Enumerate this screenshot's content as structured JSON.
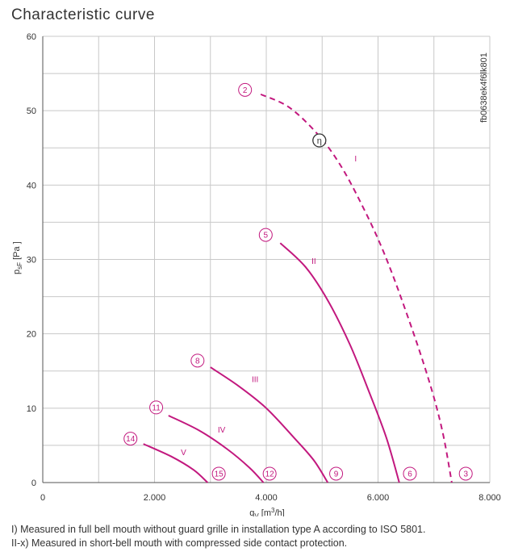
{
  "chart_data": {
    "type": "line",
    "title": "Characteristic curve",
    "xlabel": "qv [m³/h]",
    "ylabel": "psF [Pa ]",
    "xlim": [
      0,
      8000
    ],
    "ylim": [
      0,
      60
    ],
    "xticks": [
      0,
      2000,
      4000,
      6000,
      8000
    ],
    "xtick_labels": [
      "0",
      "2.000",
      "4.000",
      "6.000",
      "8.000"
    ],
    "yticks": [
      0,
      10,
      20,
      30,
      40,
      50,
      60
    ],
    "ytick_labels": [
      "0",
      "10",
      "20",
      "30",
      "40",
      "50",
      "60"
    ],
    "grid": true,
    "side_code": "fb0638ek4f6lk801",
    "colors": {
      "curve": "#c2187e",
      "grid": "#c8c8c8",
      "eta_marker": "#333333"
    },
    "series": [
      {
        "name": "I",
        "dashed": true,
        "points": [
          [
            3900,
            52.2
          ],
          [
            4400,
            50.5
          ],
          [
            4900,
            47
          ],
          [
            5300,
            43
          ],
          [
            5700,
            37.5
          ],
          [
            6100,
            31
          ],
          [
            6500,
            23
          ],
          [
            6900,
            14
          ],
          [
            7150,
            7
          ],
          [
            7320,
            0
          ]
        ],
        "label_at": [
          5600,
          43.2
        ]
      },
      {
        "name": "II",
        "dashed": false,
        "points": [
          [
            4250,
            32.2
          ],
          [
            4700,
            29
          ],
          [
            5100,
            24.5
          ],
          [
            5500,
            18.5
          ],
          [
            5850,
            12
          ],
          [
            6150,
            6
          ],
          [
            6380,
            0
          ]
        ],
        "label_at": [
          4850,
          29.4
        ]
      },
      {
        "name": "III",
        "dashed": false,
        "points": [
          [
            3000,
            15.5
          ],
          [
            3500,
            13
          ],
          [
            4000,
            10
          ],
          [
            4500,
            6
          ],
          [
            4850,
            3
          ],
          [
            5100,
            0
          ]
        ],
        "label_at": [
          3800,
          13.5
        ]
      },
      {
        "name": "IV",
        "dashed": false,
        "points": [
          [
            2250,
            9
          ],
          [
            2800,
            7
          ],
          [
            3300,
            4.5
          ],
          [
            3700,
            2
          ],
          [
            3950,
            0
          ]
        ],
        "label_at": [
          3200,
          6.7
        ]
      },
      {
        "name": "V",
        "dashed": false,
        "points": [
          [
            1800,
            5.2
          ],
          [
            2300,
            3.5
          ],
          [
            2700,
            1.7
          ],
          [
            2950,
            0
          ]
        ],
        "label_at": [
          2520,
          3.7
        ]
      }
    ],
    "operating_points": [
      {
        "label": "2",
        "at": [
          3620,
          52.8
        ]
      },
      {
        "label": "3",
        "at": [
          7570,
          1.2
        ]
      },
      {
        "label": "5",
        "at": [
          3990,
          33.3
        ]
      },
      {
        "label": "6",
        "at": [
          6570,
          1.2
        ]
      },
      {
        "label": "8",
        "at": [
          2770,
          16.4
        ]
      },
      {
        "label": "9",
        "at": [
          5250,
          1.2
        ]
      },
      {
        "label": "11",
        "at": [
          2030,
          10.1
        ]
      },
      {
        "label": "12",
        "at": [
          4060,
          1.2
        ]
      },
      {
        "label": "14",
        "at": [
          1570,
          5.9
        ]
      },
      {
        "label": "15",
        "at": [
          3150,
          1.2
        ]
      }
    ],
    "efficiency_marker": {
      "label": "η",
      "at": [
        4950,
        46
      ]
    }
  },
  "notes": [
    "I) Measured in full bell mouth without guard grille in installation type A according to ISO 5801.",
    "II-x) Measured in short-bell mouth with compressed side contact protection."
  ]
}
